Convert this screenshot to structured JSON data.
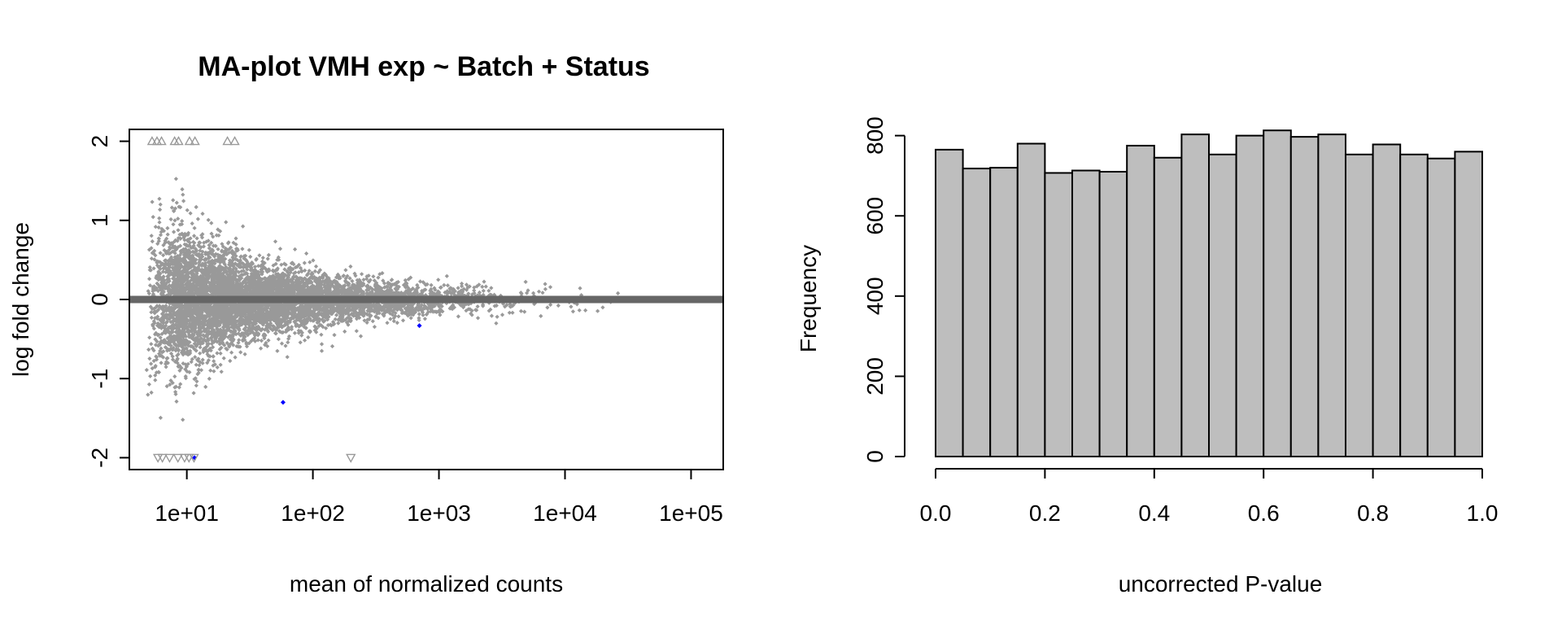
{
  "chart_data": [
    {
      "type": "scatter",
      "title": "MA-plot VMH exp ~ Batch + Status",
      "xlabel": "mean of normalized counts",
      "ylabel": "log fold change",
      "x_scale": "log10",
      "xlim": [
        3.5,
        180000
      ],
      "ylim": [
        -2.15,
        2.15
      ],
      "x_ticks": [
        {
          "value": 10,
          "label": "1e+01"
        },
        {
          "value": 100,
          "label": "1e+02"
        },
        {
          "value": 1000,
          "label": "1e+03"
        },
        {
          "value": 10000,
          "label": "1e+04"
        },
        {
          "value": 100000,
          "label": "1e+05"
        }
      ],
      "y_ticks": [
        {
          "value": -2,
          "label": "-2"
        },
        {
          "value": -1,
          "label": "-1"
        },
        {
          "value": 0,
          "label": "0"
        },
        {
          "value": 1,
          "label": "1"
        },
        {
          "value": 2,
          "label": "2"
        }
      ],
      "point_color": "#999999",
      "significant_color": "#0000ff",
      "zero_line_color": "#666666",
      "grid": false,
      "significant_points": [
        {
          "x": 58,
          "y": -1.3
        },
        {
          "x": 700,
          "y": -0.33
        },
        {
          "x": 11.5,
          "y": -2.0
        }
      ],
      "clipped_up": [
        5.3,
        5.8,
        6.3,
        8.0,
        8.6,
        10.5,
        11.6,
        21,
        24
      ],
      "clipped_down": [
        5.9,
        6.4,
        7.3,
        8.5,
        9.6,
        10.4,
        11.4,
        200
      ]
    },
    {
      "type": "histogram",
      "title": "",
      "xlabel": "uncorrected P-value",
      "ylabel": "Frequency",
      "bin_width": 0.05,
      "bin_starts": [
        0.0,
        0.05,
        0.1,
        0.15,
        0.2,
        0.25,
        0.3,
        0.35,
        0.4,
        0.45,
        0.5,
        0.55,
        0.6,
        0.65,
        0.7,
        0.75,
        0.8,
        0.85,
        0.9,
        0.95
      ],
      "values": [
        765,
        718,
        720,
        780,
        707,
        713,
        710,
        775,
        745,
        803,
        753,
        800,
        813,
        797,
        803,
        753,
        778,
        753,
        743,
        760
      ],
      "xlim": [
        0,
        1
      ],
      "ylim": [
        0,
        850
      ],
      "x_ticks": [
        {
          "value": 0.0,
          "label": "0.0"
        },
        {
          "value": 0.2,
          "label": "0.2"
        },
        {
          "value": 0.4,
          "label": "0.4"
        },
        {
          "value": 0.6,
          "label": "0.6"
        },
        {
          "value": 0.8,
          "label": "0.8"
        },
        {
          "value": 1.0,
          "label": "1.0"
        }
      ],
      "y_ticks": [
        {
          "value": 0,
          "label": "0"
        },
        {
          "value": 200,
          "label": "200"
        },
        {
          "value": 400,
          "label": "400"
        },
        {
          "value": 600,
          "label": "600"
        },
        {
          "value": 800,
          "label": "800"
        }
      ],
      "bar_color": "#bebebe",
      "grid": false
    }
  ]
}
